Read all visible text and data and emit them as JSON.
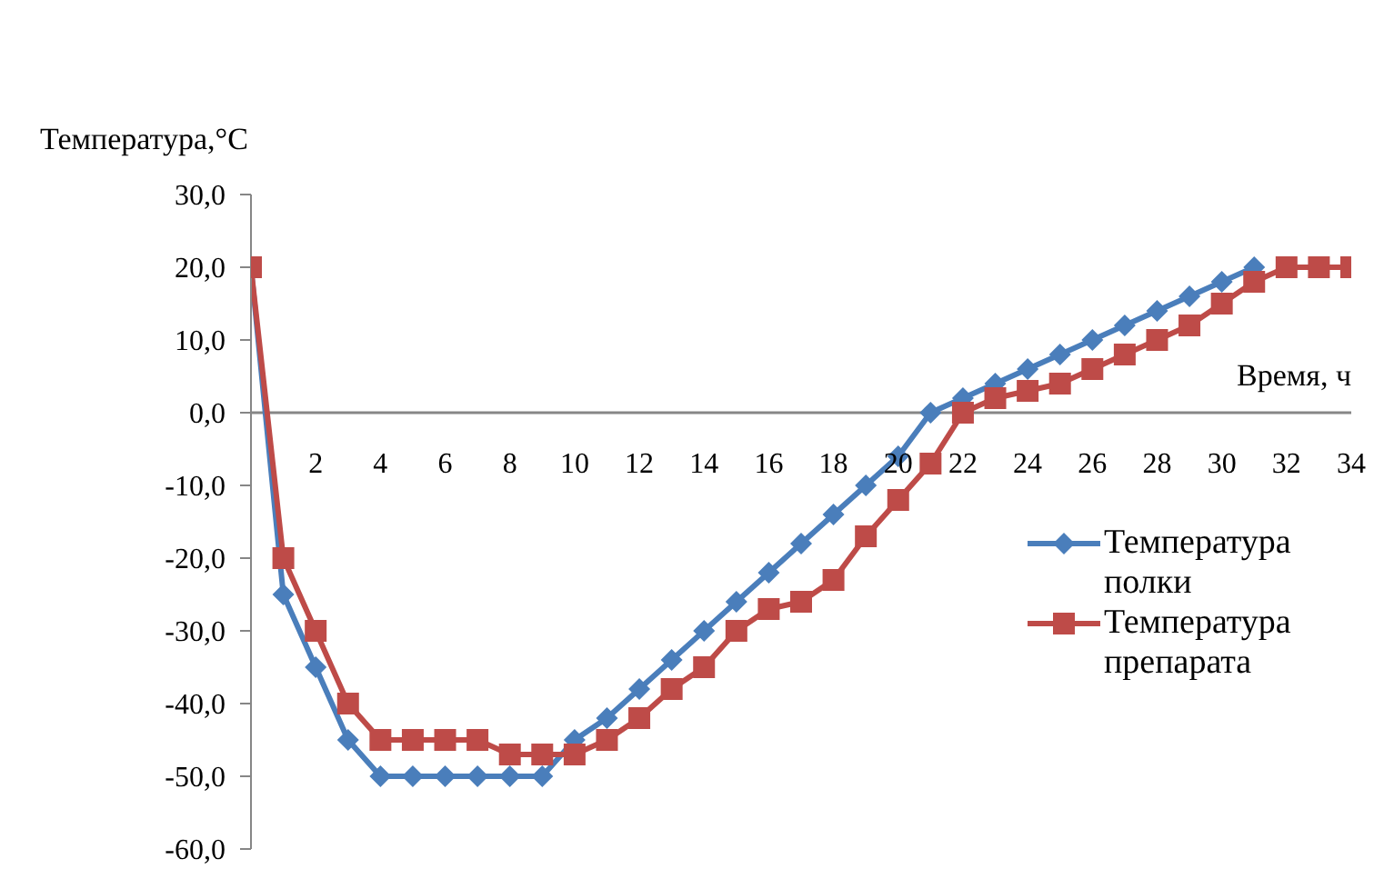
{
  "chart_data": {
    "type": "line",
    "ylabel": "Температура,°С",
    "xlabel": "Время, ч",
    "x": [
      0,
      1,
      2,
      3,
      4,
      5,
      6,
      7,
      8,
      9,
      10,
      11,
      12,
      13,
      14,
      15,
      16,
      17,
      18,
      19,
      20,
      21,
      22,
      23,
      24,
      25,
      26,
      27,
      28,
      29,
      30,
      31,
      32,
      33,
      34
    ],
    "xlim": [
      0,
      34
    ],
    "xticks": [
      2,
      4,
      6,
      8,
      10,
      12,
      14,
      16,
      18,
      20,
      22,
      24,
      26,
      28,
      30,
      32,
      34
    ],
    "ylim": [
      -60,
      30
    ],
    "yticks": [
      {
        "value": -60,
        "label": "-60,0"
      },
      {
        "value": -50,
        "label": "-50,0"
      },
      {
        "value": -40,
        "label": "-40,0"
      },
      {
        "value": -30,
        "label": "-30,0"
      },
      {
        "value": -20,
        "label": "-20,0"
      },
      {
        "value": -10,
        "label": "-10,0"
      },
      {
        "value": 0,
        "label": "0,0"
      },
      {
        "value": 10,
        "label": "10,0"
      },
      {
        "value": 20,
        "label": "20,0"
      },
      {
        "value": 30,
        "label": "30,0"
      }
    ],
    "series": [
      {
        "name": "Температура полки",
        "color": "#4a7ebb",
        "marker": "diamond",
        "values": [
          20,
          -25,
          -35,
          -45,
          -50,
          -50,
          -50,
          -50,
          -50,
          -50,
          -45,
          -42,
          -38,
          -34,
          -30,
          -26,
          -22,
          -18,
          -14,
          -10,
          -6,
          0,
          2,
          4,
          6,
          8,
          10,
          12,
          14,
          16,
          18,
          20,
          null,
          null,
          null
        ]
      },
      {
        "name": "Температура препарата",
        "color": "#be4b48",
        "marker": "square",
        "values": [
          20,
          -20,
          -30,
          -40,
          -45,
          -45,
          -45,
          -45,
          -47,
          -47,
          -47,
          -45,
          -42,
          -38,
          -35,
          -30,
          -27,
          -26,
          -23,
          -17,
          -12,
          -7,
          0,
          2,
          3,
          4,
          6,
          8,
          10,
          12,
          15,
          18,
          20,
          20,
          20
        ]
      }
    ],
    "grid": false,
    "legend": "right"
  }
}
